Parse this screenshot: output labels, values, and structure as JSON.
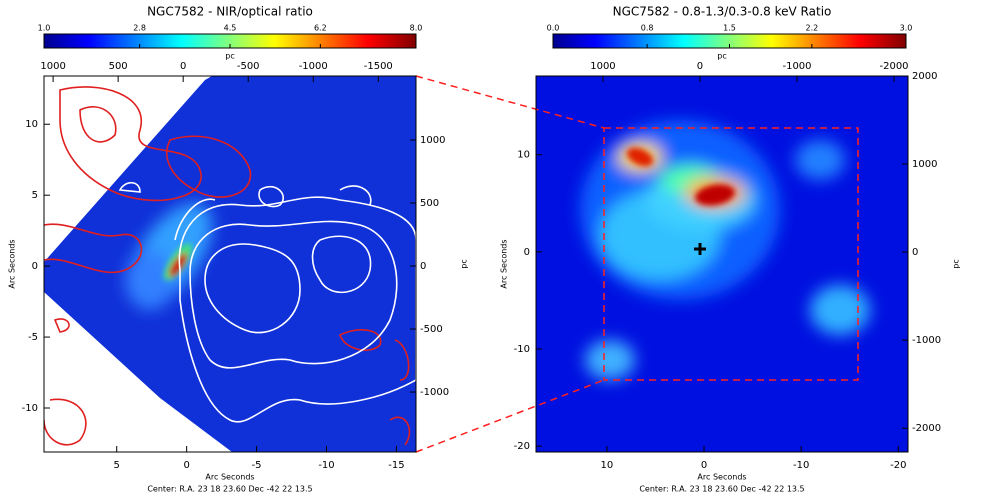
{
  "chart_data": [
    {
      "type": "image",
      "title": "NGC7582 - NIR/optical ratio",
      "clim": [
        1,
        8
      ],
      "cticks": [
        {
          "value": 1,
          "label": "1.0"
        },
        2.8,
        4.5,
        6.2,
        {
          "value": 8,
          "label": "8.0"
        }
      ],
      "x2label": "pc",
      "x2lim": [
        1070,
        -1790
      ],
      "x2ticks": [
        1000,
        500,
        0,
        -500,
        -1000,
        -1500
      ],
      "xlabel": "Arc Seconds",
      "xlim": [
        10.2,
        -16.4
      ],
      "xticks": [
        5,
        0,
        -5,
        -10,
        -15
      ],
      "ylabel": "Arc Seconds",
      "ylim": [
        -13.1,
        13.4
      ],
      "yticks": [
        10,
        5,
        0,
        -5,
        -10
      ],
      "y2label": "pc",
      "y2lim": [
        -1476,
        1508
      ],
      "y2ticks": [
        1000,
        500,
        0,
        -500,
        -1000
      ],
      "footer": "Center:  R.A. 23 18 23.60    Dec   -42 22 13.5"
    },
    {
      "type": "image",
      "title": "NGC7582 - 0.8-1.3/0.3-0.8 keV Ratio",
      "clim": [
        0,
        3
      ],
      "cticks": [
        {
          "value": 0,
          "label": "0.0"
        },
        0.8,
        1.5,
        2.2,
        {
          "value": 3,
          "label": "3.0"
        }
      ],
      "x2label": "pc",
      "x2lim": [
        1690,
        -2144
      ],
      "x2ticks": [
        1000,
        0,
        -1000,
        -2000
      ],
      "xlabel": "Arc Seconds",
      "xlim": [
        17.3,
        -21
      ],
      "xticks": [
        10,
        0,
        -10,
        -20
      ],
      "ylabel": "Arc Seconds",
      "ylim": [
        -20.6,
        18.1
      ],
      "yticks": [
        10,
        0,
        -10,
        -20
      ],
      "y2label": "pc",
      "y2lim": [
        -2270,
        2000
      ],
      "y2ticks": [
        2000,
        1000,
        0,
        -1000,
        -2000
      ],
      "footer": "Center:  R.A. 23 18 23.60    Dec   -42 22 13.5"
    }
  ]
}
